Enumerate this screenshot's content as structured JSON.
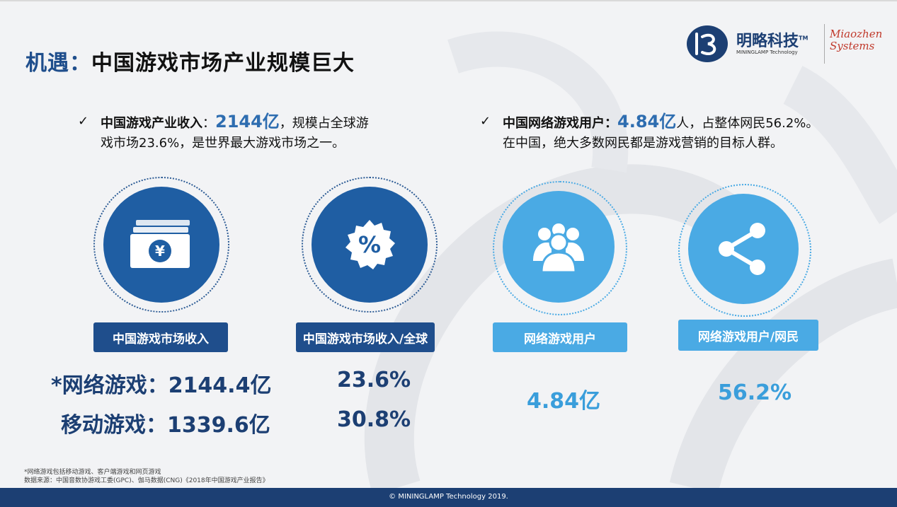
{
  "title": {
    "prefix": "机遇：",
    "main": "中国游戏市场产业规模巨大"
  },
  "logo": {
    "cn": "明略科技",
    "tm": "TM",
    "en": "MININGLAMP Technology",
    "mz_line1": "Miaozhen",
    "mz_line2": "Systems"
  },
  "bullets": [
    {
      "check": "✓",
      "lead": "中国游戏产业收入",
      "sep": "：",
      "highlight": "2144亿",
      "rest1": "，规模占全球游",
      "rest2": "戏市场23.6%，是世界最大游戏市场之一。"
    },
    {
      "check": "✓",
      "lead": "中国网络游戏用户：",
      "highlight": "4.84亿",
      "rest1": "人，占整体网民56.2%。",
      "rest2": "在中国，绝大多数网民都是游戏营销的目标人群。"
    }
  ],
  "cards": [
    {
      "icon": "yen-banknote-icon",
      "label": "中国游戏市场收入",
      "values": [
        "*网络游戏：2144.4亿",
        "移动游戏：1339.6亿"
      ]
    },
    {
      "icon": "percent-badge-icon",
      "label": "中国游戏市场收入/全球",
      "values": [
        "23.6%",
        "30.8%"
      ]
    },
    {
      "icon": "user-group-icon",
      "label": "网络游戏用户",
      "values": [
        "4.84亿"
      ]
    },
    {
      "icon": "share-icon",
      "label": "网络游戏用户/网民",
      "values": [
        "56.2%"
      ]
    }
  ],
  "colors": {
    "dark_blue": "#1f5ea3",
    "light_blue": "#4aaae4",
    "navy": "#1c3f73"
  },
  "footnote": {
    "line1": "*网络游戏包括移动游戏、客户端游戏和网页游戏",
    "line2": "数据来源：中国音数协游戏工委(GPC)、伽马数据(CNG)《2018年中国游戏产业报告》"
  },
  "footer": {
    "copyright": "© MININGLAMP Technology 2019."
  }
}
